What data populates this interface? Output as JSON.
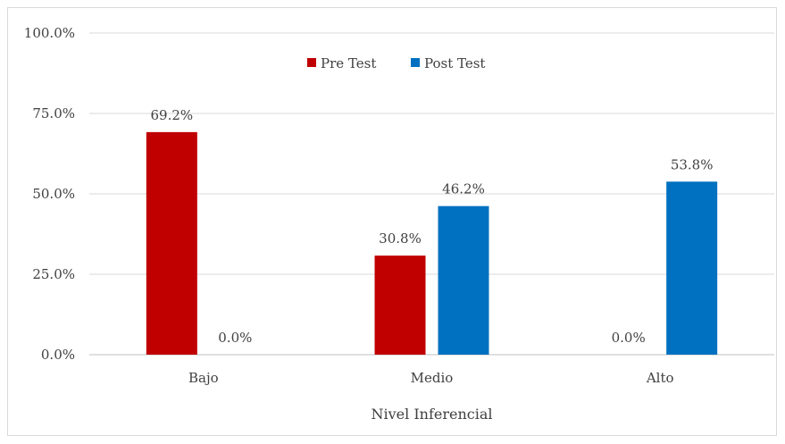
{
  "chart_data": {
    "type": "bar",
    "categories": [
      "Bajo",
      "Medio",
      "Alto"
    ],
    "series": [
      {
        "name": "Pre Test",
        "values": [
          69.2,
          30.8,
          0.0
        ],
        "labels": [
          "69.2%",
          "30.8%",
          "0.0%"
        ],
        "color": "#C00000"
      },
      {
        "name": "Post Test",
        "values": [
          0.0,
          46.2,
          53.8
        ],
        "labels": [
          "0.0%",
          "46.2%",
          "53.8%"
        ],
        "color": "#0070C0"
      }
    ],
    "xlabel": "Nivel Inferencial",
    "ylabel": "",
    "ylim": [
      0,
      100
    ],
    "yticks": [
      {
        "value": 0,
        "label": "0.0%"
      },
      {
        "value": 25,
        "label": "25.0%"
      },
      {
        "value": 50,
        "label": "50.0%"
      },
      {
        "value": 75,
        "label": "75.0%"
      },
      {
        "value": 100,
        "label": "100.0%"
      }
    ],
    "grid": true,
    "legend_position": "top"
  }
}
